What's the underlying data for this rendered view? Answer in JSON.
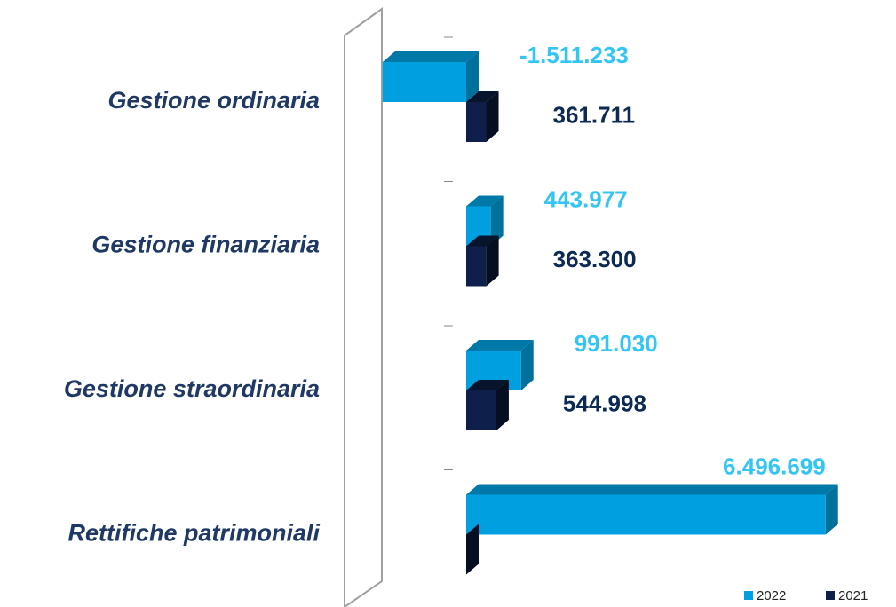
{
  "chart_data": {
    "type": "bar3d-horizontal",
    "categories": [
      "Gestione ordinaria",
      "Gestione finanziaria",
      "Gestione straordinaria",
      "Rettifiche patrimoniali"
    ],
    "series": [
      {
        "name": "2022",
        "color": "#00a0e0",
        "values": [
          -1511233,
          443977,
          991030,
          6496699
        ],
        "value_labels": [
          "-1.511.233",
          "443.977",
          "991.030",
          "6.496.699"
        ]
      },
      {
        "name": "2021",
        "color": "#0d1f4a",
        "values": [
          361711,
          363300,
          544998,
          0
        ],
        "value_labels": [
          "361.711",
          "363.300",
          "544.998",
          null
        ]
      }
    ],
    "xlim": [
      -1600000,
      6700000
    ],
    "legend": "bottom-right"
  }
}
